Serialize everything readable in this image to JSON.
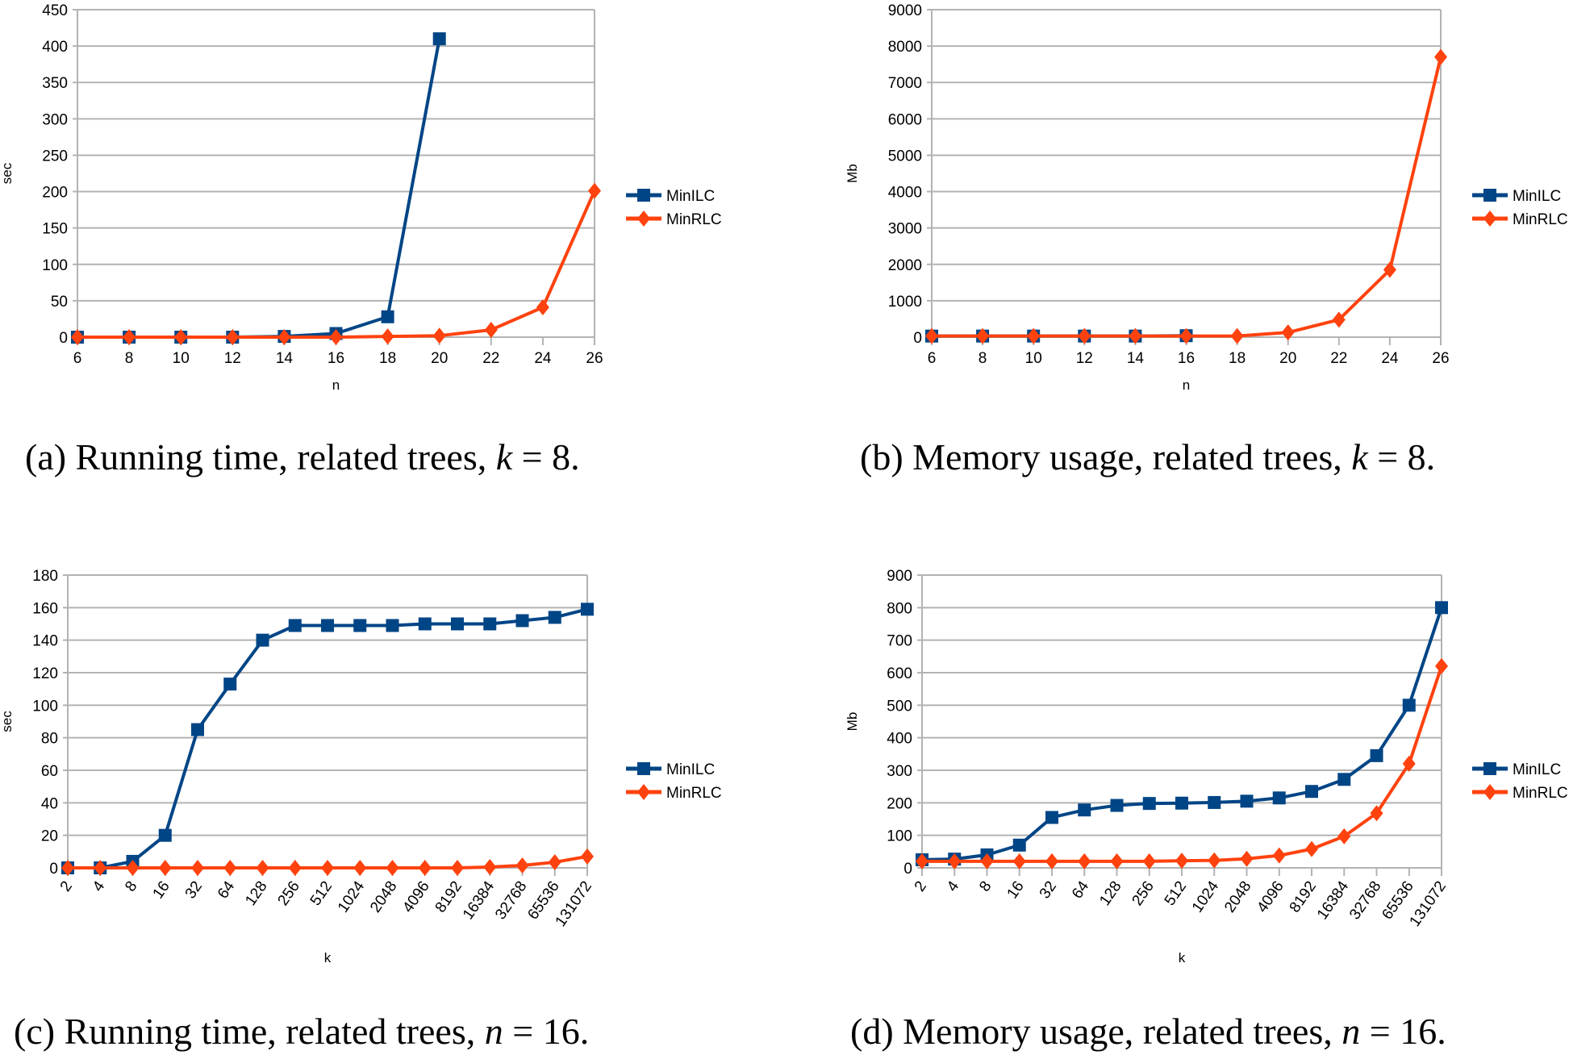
{
  "colors": {
    "MinILC": "#004586",
    "MinRLC": "#ff420e",
    "grid": "#b3b3b3"
  },
  "chart_data": [
    {
      "id": "a",
      "type": "line",
      "xlabel": "n",
      "ylabel": "sec",
      "ylim": [
        0,
        450
      ],
      "yticks": [
        "0",
        "50",
        "100",
        "150",
        "200",
        "250",
        "300",
        "350",
        "400",
        "450"
      ],
      "categories": [
        "6",
        "8",
        "10",
        "12",
        "14",
        "16",
        "18",
        "20",
        "22",
        "24",
        "26"
      ],
      "grid": true,
      "legend": "right",
      "series": [
        {
          "name": "MinILC",
          "marker": "square",
          "values": [
            0,
            0,
            0,
            0,
            1,
            5,
            28,
            410,
            null,
            null,
            null
          ]
        },
        {
          "name": "MinRLC",
          "marker": "diamond",
          "values": [
            0,
            0,
            0,
            0,
            0,
            0,
            1,
            2,
            10,
            41,
            201
          ]
        }
      ],
      "caption": {
        "prefix": "(a) Running time, related trees, ",
        "var": "k",
        "suffix": " = 8."
      }
    },
    {
      "id": "b",
      "type": "line",
      "xlabel": "n",
      "ylabel": "Mb",
      "ylim": [
        0,
        9000
      ],
      "yticks": [
        "0",
        "1000",
        "2000",
        "3000",
        "4000",
        "5000",
        "6000",
        "7000",
        "8000",
        "9000"
      ],
      "categories": [
        "6",
        "8",
        "10",
        "12",
        "14",
        "16",
        "18",
        "20",
        "22",
        "24",
        "26"
      ],
      "grid": true,
      "legend": "right",
      "series": [
        {
          "name": "MinILC",
          "marker": "square",
          "values": [
            30,
            30,
            30,
            30,
            30,
            40,
            null,
            null,
            null,
            null,
            null
          ]
        },
        {
          "name": "MinRLC",
          "marker": "diamond",
          "values": [
            30,
            30,
            30,
            30,
            30,
            30,
            30,
            130,
            480,
            1850,
            7700
          ]
        }
      ],
      "caption": {
        "prefix": "(b) Memory usage, related trees, ",
        "var": "k",
        "suffix": " = 8."
      }
    },
    {
      "id": "c",
      "type": "line",
      "xlabel": "k",
      "ylabel": "sec",
      "ylim": [
        0,
        180
      ],
      "yticks": [
        "0",
        "20",
        "40",
        "60",
        "80",
        "100",
        "120",
        "140",
        "160",
        "180"
      ],
      "categories": [
        "2",
        "4",
        "8",
        "16",
        "32",
        "64",
        "128",
        "256",
        "512",
        "1024",
        "2048",
        "4096",
        "8192",
        "16384",
        "32768",
        "65536",
        "131072"
      ],
      "grid": true,
      "legend": "right",
      "series": [
        {
          "name": "MinILC",
          "marker": "square",
          "values": [
            0,
            0,
            4,
            20,
            85,
            113,
            140,
            149,
            149,
            149,
            149,
            150,
            150,
            150,
            152,
            154,
            159
          ]
        },
        {
          "name": "MinRLC",
          "marker": "diamond",
          "values": [
            0,
            0,
            0,
            0,
            0,
            0,
            0,
            0,
            0,
            0,
            0,
            0,
            0,
            0.5,
            1.5,
            3.5,
            7
          ]
        }
      ],
      "caption": {
        "prefix": "(c) Running time, related trees, ",
        "var": "n",
        "suffix": " = 16."
      }
    },
    {
      "id": "d",
      "type": "line",
      "xlabel": "k",
      "ylabel": "Mb",
      "ylim": [
        0,
        900
      ],
      "yticks": [
        "0",
        "100",
        "200",
        "300",
        "400",
        "500",
        "600",
        "700",
        "800",
        "900"
      ],
      "categories": [
        "2",
        "4",
        "8",
        "16",
        "32",
        "64",
        "128",
        "256",
        "512",
        "1024",
        "2048",
        "4096",
        "8192",
        "16384",
        "32768",
        "65536",
        "131072"
      ],
      "grid": true,
      "legend": "right",
      "series": [
        {
          "name": "MinILC",
          "marker": "square",
          "values": [
            25,
            27,
            40,
            70,
            155,
            178,
            192,
            198,
            199,
            201,
            205,
            215,
            235,
            272,
            345,
            500,
            800
          ]
        },
        {
          "name": "MinRLC",
          "marker": "diamond",
          "values": [
            20,
            20,
            20,
            20,
            20,
            20,
            20,
            20,
            22,
            23,
            28,
            38,
            58,
            97,
            168,
            320,
            620
          ]
        }
      ],
      "caption": {
        "prefix": "(d) Memory usage, related trees, ",
        "var": "n",
        "suffix": " = 16."
      }
    }
  ]
}
